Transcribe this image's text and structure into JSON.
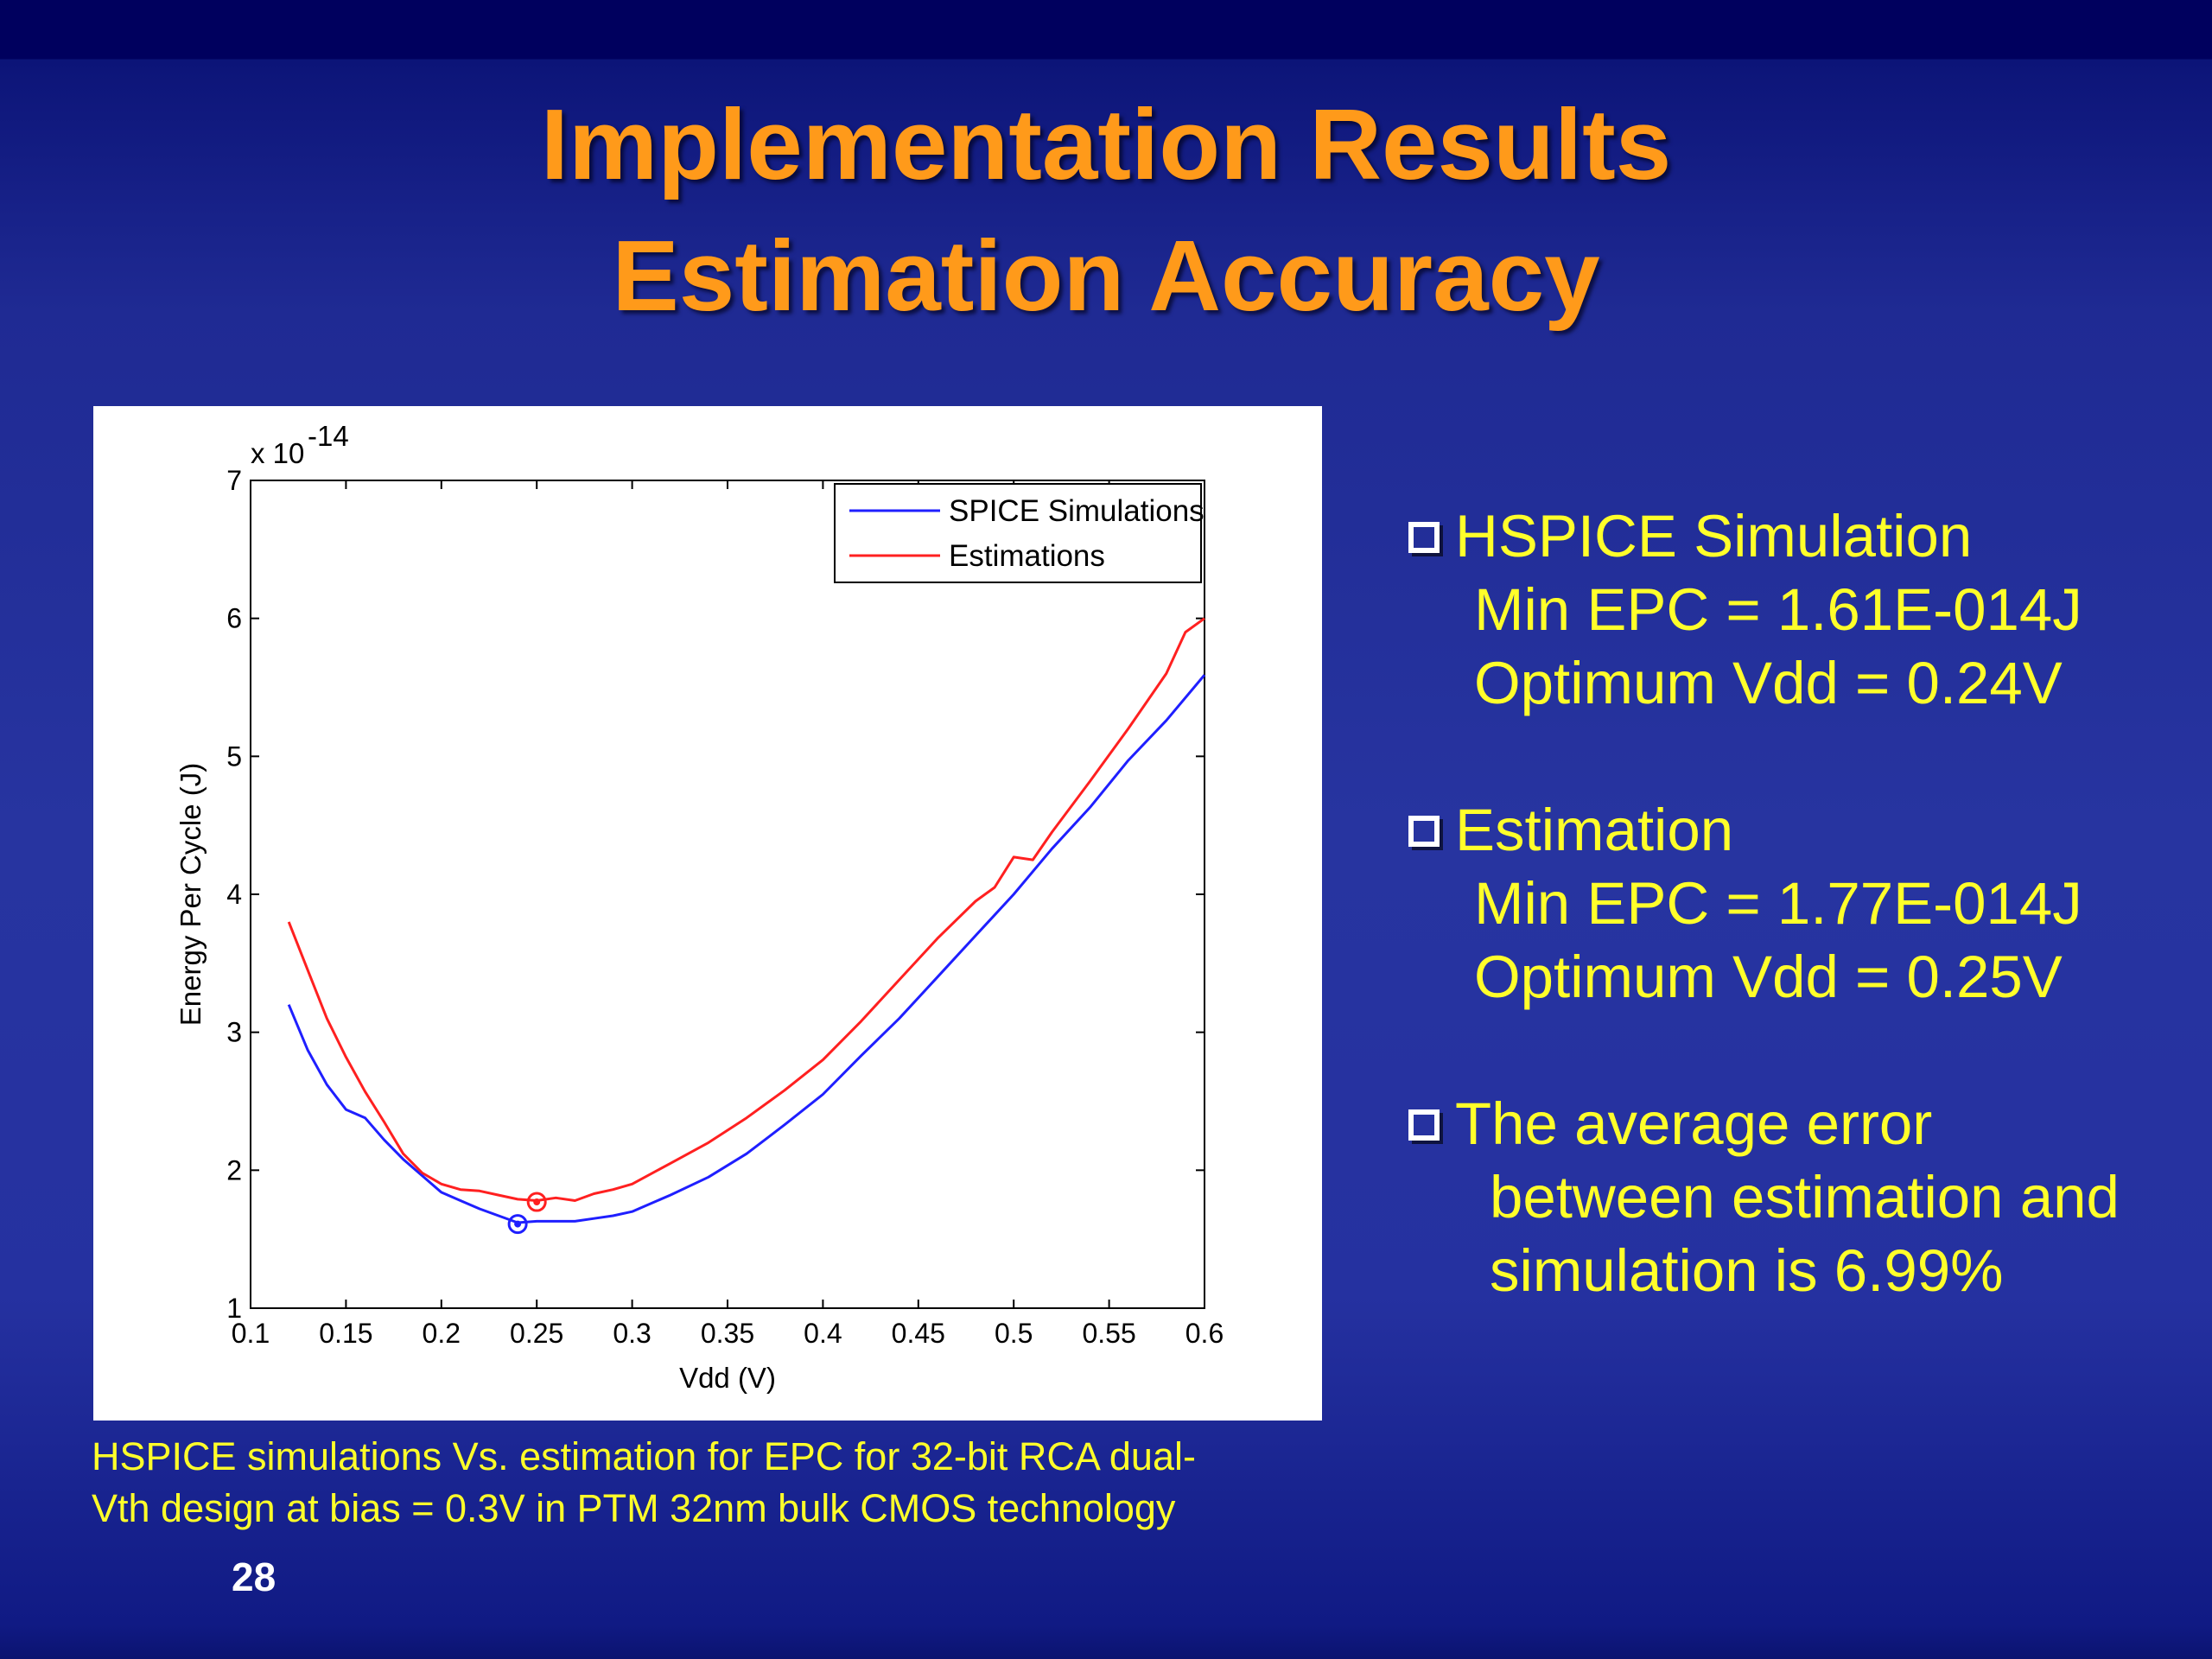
{
  "slide": {
    "title_line1": "Implementation Results",
    "title_line2": "Estimation Accuracy",
    "page_number": "28",
    "caption_line1": "HSPICE simulations  Vs. estimation for EPC for 32-bit RCA dual-",
    "caption_line2": "Vth design at bias = 0.3V in PTM 32nm bulk CMOS technology",
    "colors": {
      "title": "#ff9a1a",
      "body_text": "#ffff2a",
      "background": "#2734a0"
    }
  },
  "bullets": [
    {
      "icon": "checkbox-icon",
      "heading": "HSPICE Simulation",
      "lines": [
        "Min EPC = 1.61E-014J",
        "Optimum Vdd = 0.24V"
      ]
    },
    {
      "icon": "checkbox-icon",
      "heading": "Estimation",
      "lines": [
        "Min EPC = 1.77E-014J",
        "Optimum Vdd = 0.25V"
      ]
    },
    {
      "icon": "checkbox-icon",
      "heading": "The average error",
      "lines": [
        "between estimation and",
        "simulation is 6.99%"
      ]
    }
  ],
  "chart_data": {
    "type": "line",
    "title": "",
    "xlabel": "Vdd (V)",
    "ylabel": "Energy Per Cycle (J)",
    "y_multiplier_base": "x 10",
    "y_multiplier_exp": "-14",
    "xlim": [
      0.1,
      0.6
    ],
    "ylim": [
      1,
      7
    ],
    "x_ticks": [
      "0.1",
      "0.15",
      "0.2",
      "0.25",
      "0.3",
      "0.35",
      "0.4",
      "0.45",
      "0.5",
      "0.55",
      "0.6"
    ],
    "y_ticks": [
      "1",
      "2",
      "3",
      "4",
      "5",
      "6",
      "7"
    ],
    "grid": false,
    "legend_position": "top-right",
    "series": [
      {
        "name": "SPICE Simulations",
        "color": "#1f1fff",
        "x": [
          0.12,
          0.13,
          0.14,
          0.15,
          0.16,
          0.17,
          0.18,
          0.19,
          0.2,
          0.21,
          0.22,
          0.23,
          0.24,
          0.25,
          0.26,
          0.27,
          0.28,
          0.29,
          0.3,
          0.32,
          0.34,
          0.36,
          0.38,
          0.4,
          0.42,
          0.44,
          0.46,
          0.48,
          0.5,
          0.52,
          0.54,
          0.56,
          0.58,
          0.6
        ],
        "y": [
          3.2,
          2.87,
          2.62,
          2.44,
          2.38,
          2.22,
          2.08,
          1.96,
          1.84,
          1.78,
          1.72,
          1.67,
          1.62,
          1.63,
          1.63,
          1.63,
          1.65,
          1.67,
          1.7,
          1.82,
          1.95,
          2.12,
          2.33,
          2.55,
          2.83,
          3.1,
          3.4,
          3.7,
          4.0,
          4.33,
          4.63,
          4.97,
          5.26,
          5.59
        ],
        "marker": {
          "x": 0.24,
          "y": 1.61
        }
      },
      {
        "name": "Estimations",
        "color": "#ff2020",
        "x": [
          0.12,
          0.13,
          0.14,
          0.15,
          0.16,
          0.17,
          0.18,
          0.19,
          0.2,
          0.21,
          0.22,
          0.23,
          0.24,
          0.25,
          0.26,
          0.27,
          0.28,
          0.29,
          0.3,
          0.32,
          0.34,
          0.36,
          0.38,
          0.4,
          0.42,
          0.44,
          0.46,
          0.48,
          0.49,
          0.5,
          0.51,
          0.52,
          0.54,
          0.56,
          0.58,
          0.59,
          0.6
        ],
        "y": [
          3.8,
          3.45,
          3.1,
          2.82,
          2.57,
          2.35,
          2.12,
          1.98,
          1.9,
          1.86,
          1.85,
          1.82,
          1.79,
          1.78,
          1.8,
          1.78,
          1.83,
          1.86,
          1.9,
          2.05,
          2.2,
          2.38,
          2.58,
          2.8,
          3.08,
          3.38,
          3.68,
          3.95,
          4.05,
          4.27,
          4.25,
          4.45,
          4.82,
          5.2,
          5.6,
          5.9,
          6.0
        ],
        "marker": {
          "x": 0.25,
          "y": 1.77
        }
      }
    ]
  }
}
